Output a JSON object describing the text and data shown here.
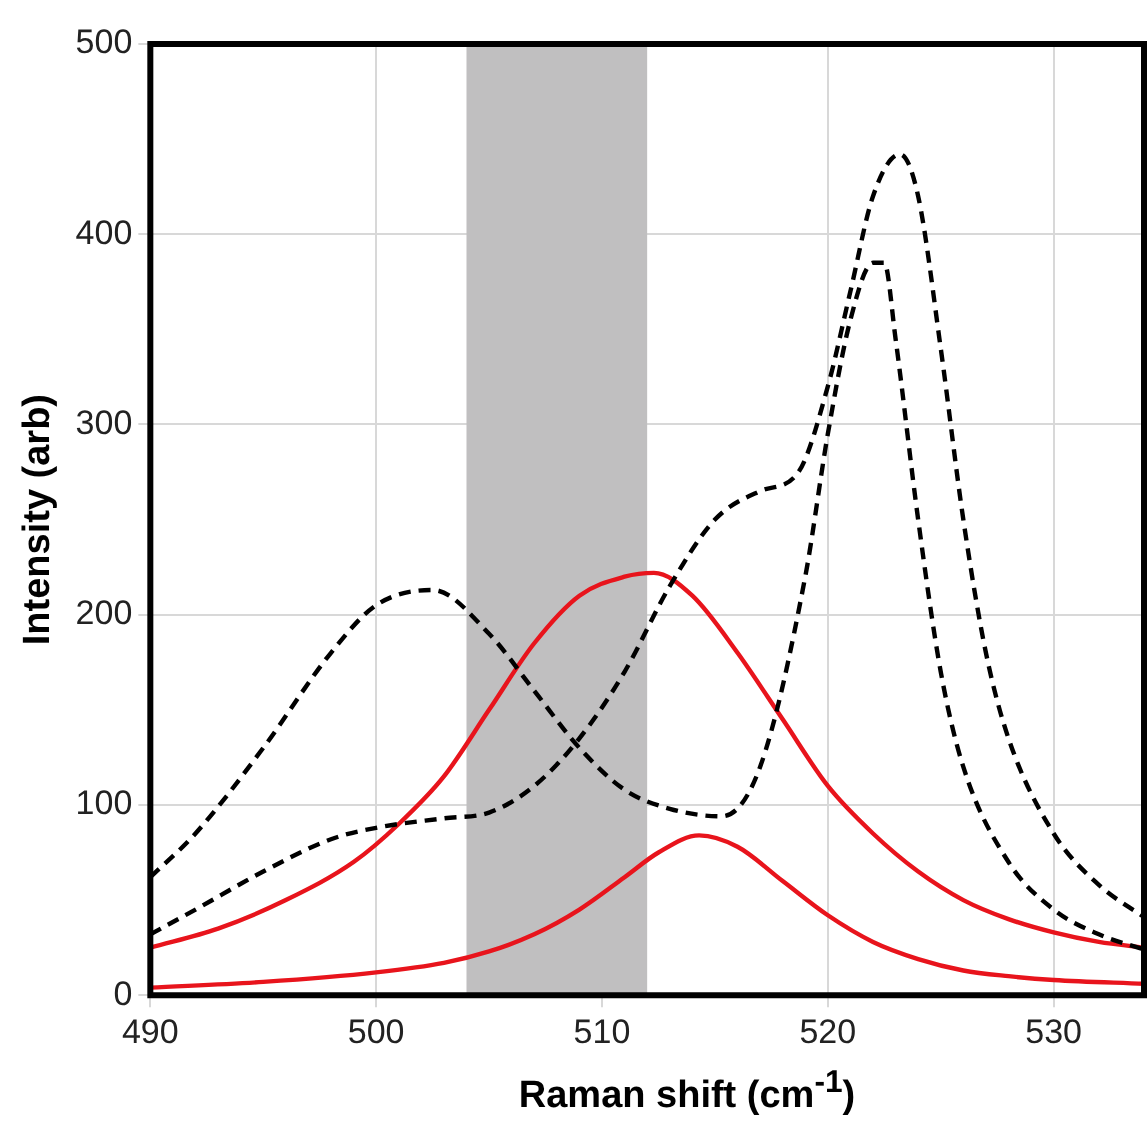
{
  "chart_data": {
    "type": "line",
    "xlabel": "Raman shift (cm$^{-1}$)",
    "ylabel": "Intensity (arb)",
    "xlim": [
      490,
      534
    ],
    "xticks": [
      490,
      500,
      510,
      520,
      530
    ],
    "ylim": [
      0,
      500
    ],
    "yticks": [
      0,
      100,
      200,
      300,
      400,
      500
    ],
    "grid": true,
    "legend": false,
    "marker": "none",
    "bands": [
      {
        "axis": "x",
        "from": 504,
        "to": 512,
        "color": "#c0bfc0"
      }
    ],
    "series": [
      {
        "color": "#000000",
        "line_style": "dashed",
        "x": [
          490,
          492,
          495,
          498,
          500,
          502.5,
          505,
          507,
          509,
          511,
          513,
          515.3,
          517,
          519,
          520,
          521,
          522,
          522.5,
          523,
          524,
          525,
          526,
          528,
          530,
          532,
          534
        ],
        "values": [
          62,
          85,
          130,
          180,
          205,
          213,
          190,
          160,
          130,
          108,
          98,
          94,
          120,
          220,
          295,
          355,
          385,
          385,
          345,
          250,
          170,
          120,
          70,
          45,
          32,
          24
        ]
      },
      {
        "color": "#000000",
        "line_style": "dashed",
        "x": [
          490,
          492,
          495,
          498,
          500,
          503,
          505,
          507,
          509,
          511,
          513,
          515,
          517,
          518.7,
          520,
          521,
          522,
          523.2,
          524,
          525,
          526,
          527,
          528,
          530,
          532,
          534
        ],
        "values": [
          32,
          45,
          65,
          82,
          88,
          93,
          96,
          110,
          135,
          170,
          215,
          250,
          265,
          275,
          320,
          370,
          420,
          442,
          420,
          340,
          250,
          180,
          135,
          85,
          58,
          41
        ]
      },
      {
        "color": "#e8141c",
        "line_style": "solid",
        "x": [
          490,
          493,
          496,
          499,
          501,
          503,
          505,
          507,
          509,
          511,
          512.3,
          514,
          516,
          518,
          520,
          522,
          524,
          526,
          528,
          530,
          532,
          534
        ],
        "values": [
          25,
          35,
          50,
          70,
          90,
          115,
          150,
          185,
          210,
          220,
          222,
          210,
          180,
          145,
          110,
          85,
          65,
          50,
          40,
          33,
          28,
          25
        ]
      },
      {
        "color": "#e8141c",
        "line_style": "solid",
        "x": [
          490,
          495,
          500,
          503,
          505,
          507,
          509,
          511,
          512.5,
          514.3,
          516,
          518,
          520,
          522,
          524,
          526,
          528,
          530,
          534
        ],
        "values": [
          4,
          7,
          12,
          17,
          23,
          32,
          45,
          62,
          75,
          84,
          78,
          60,
          42,
          28,
          19,
          13,
          10,
          8,
          6
        ]
      }
    ]
  }
}
